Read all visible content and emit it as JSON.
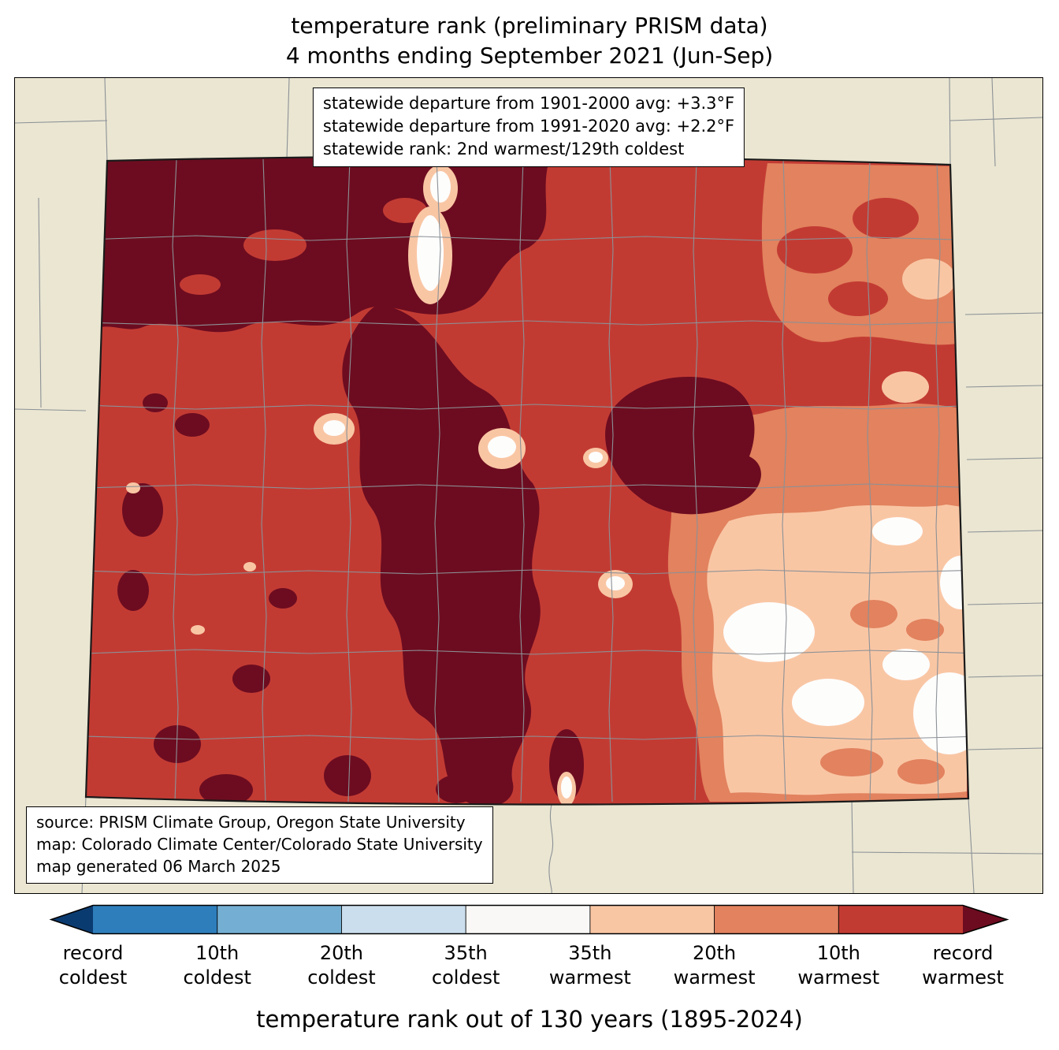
{
  "title": {
    "line1": "temperature rank (preliminary PRISM data)",
    "line2": "4 months ending September 2021 (Jun-Sep)"
  },
  "stats_box": {
    "line1": "statewide departure from 1901-2000 avg: +3.3°F",
    "line2": "statewide departure from 1991-2020 avg: +2.2°F",
    "line3": "statewide rank: 2nd warmest/129th coldest"
  },
  "source_box": {
    "line1": "source: PRISM Climate Group, Oregon State University",
    "line2": "map: Colorado Climate Center/Colorado State University",
    "line3": "map generated 06 March 2025"
  },
  "colorbar": {
    "labels": [
      "record\ncoldest",
      "10th\ncoldest",
      "20th\ncoldest",
      "35th\ncoldest",
      "35th\nwarmest",
      "20th\nwarmest",
      "10th\nwarmest",
      "record\nwarmest"
    ],
    "segments": [
      "#2e7ebc",
      "#74afd3",
      "#cadeee",
      "#f9f8f6",
      "#f9c6a4",
      "#e2825e",
      "#c23b33"
    ],
    "left_arrow_color": "#0a3b70",
    "right_arrow_color": "#6d0c20"
  },
  "caption": "temperature rank out of 130 years (1895-2024)",
  "palette": {
    "bg": "#eae6d2",
    "red": "#c23b33",
    "maroon": "#6d0c20",
    "salmon": "#e2825e",
    "peach": "#f9c6a4",
    "white": "#fdfdfc",
    "county": "#8c9196"
  }
}
